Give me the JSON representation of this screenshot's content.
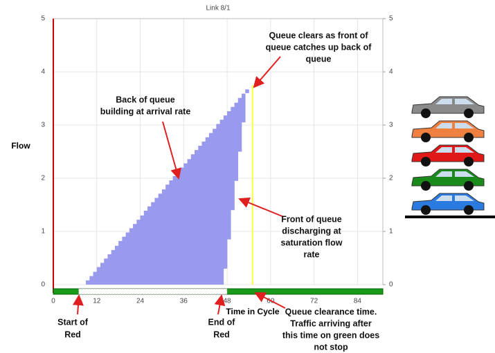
{
  "chart_data": {
    "type": "queue-diagram",
    "title": "Link 8/1",
    "x_label": "Time in Cycle",
    "y_label": "Flow",
    "x": [
      10,
      11,
      12,
      13,
      14,
      15,
      16,
      17,
      18,
      19,
      20,
      21,
      22,
      23,
      24,
      25,
      26,
      27,
      28,
      29,
      30,
      31,
      32,
      33,
      34,
      35,
      36,
      37,
      38,
      39,
      40,
      41,
      42,
      43,
      44,
      45,
      46,
      47,
      48,
      49,
      50,
      51,
      52,
      53,
      54,
      55
    ],
    "series": [
      {
        "name": "Back of queue",
        "color": "#9999ee",
        "values": [
          0.08,
          0.16,
          0.24,
          0.33,
          0.41,
          0.49,
          0.57,
          0.65,
          0.73,
          0.82,
          0.9,
          0.98,
          1.06,
          1.14,
          1.22,
          1.3,
          1.39,
          1.47,
          1.55,
          1.63,
          1.71,
          1.79,
          1.88,
          1.96,
          2.04,
          2.12,
          2.2,
          2.28,
          2.36,
          2.45,
          2.53,
          2.61,
          2.69,
          2.77,
          2.85,
          2.93,
          3.02,
          3.1,
          3.18,
          3.26,
          3.34,
          3.42,
          3.51,
          3.59,
          3.67,
          3.75
        ]
      },
      {
        "name": "Front of queue",
        "color": "#ffffff",
        "values": [
          0,
          0,
          0,
          0,
          0,
          0,
          0,
          0,
          0,
          0,
          0,
          0,
          0,
          0,
          0,
          0,
          0,
          0,
          0,
          0,
          0,
          0,
          0,
          0,
          0,
          0,
          0,
          0,
          0,
          0,
          0,
          0,
          0,
          0,
          0,
          0,
          0,
          0,
          0.3,
          0.85,
          1.4,
          1.95,
          2.5,
          3.05,
          3.6,
          3.75
        ]
      }
    ],
    "red_period": [
      7,
      48
    ],
    "clearance_time": 55,
    "clearance_color": "#ffff33",
    "xlim": [
      0,
      91
    ],
    "xticks": [
      0,
      12,
      24,
      36,
      48,
      60,
      72,
      84
    ],
    "ylim": [
      0,
      5
    ],
    "yticks": [
      0,
      1,
      2,
      3,
      4,
      5
    ],
    "y2lim": [
      0,
      5
    ],
    "y2ticks": [
      0,
      1,
      2,
      3,
      4,
      5
    ],
    "grid": true,
    "annotations": [
      {
        "lines": [
          "Queue clears as front of",
          "queue catches up back of",
          "queue"
        ]
      },
      {
        "lines": [
          "Back of queue",
          "building at arrival rate"
        ]
      },
      {
        "lines": [
          "Front of queue",
          "discharging at",
          "saturation flow",
          "rate"
        ]
      },
      {
        "lines": [
          "Start of",
          "Red"
        ]
      },
      {
        "lines": [
          "End of",
          "Red"
        ]
      },
      {
        "lines": [
          "Queue clearance time.",
          "Traffic arriving after",
          "this time on green does",
          "not stop"
        ]
      }
    ]
  }
}
